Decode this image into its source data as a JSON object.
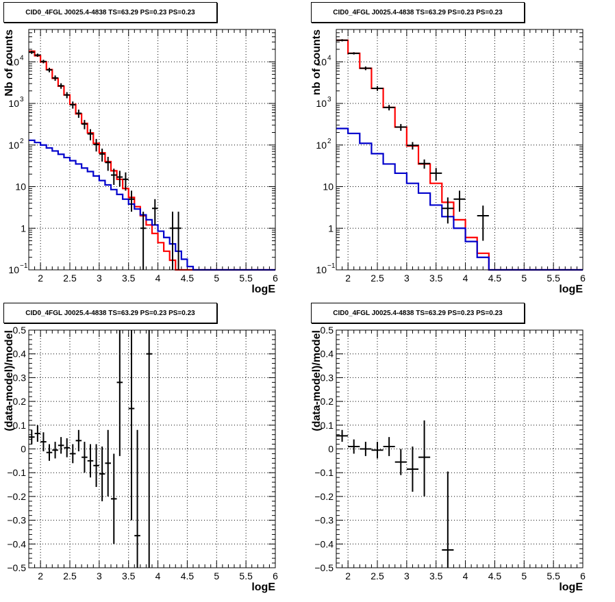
{
  "chart_data": [
    {
      "type": "line",
      "title": "CID0_4FGL J0025.4-4838 TS=63.29 PS=0.23 PS=0.23",
      "xlabel": "logE",
      "ylabel": "Nb of counts",
      "log_y": true,
      "xlim": [
        1.8,
        6.0
      ],
      "ylim": [
        0.1,
        60000
      ],
      "grid": true,
      "x_ticks": [
        "2",
        "2.5",
        "3",
        "3.5",
        "4",
        "4.5",
        "5",
        "5.5",
        "6"
      ],
      "y_ticks": [
        "10^-1",
        "1",
        "10",
        "10^2",
        "10^3",
        "10^4"
      ],
      "bin_edges": [
        1.8,
        1.9,
        2.0,
        2.1,
        2.2,
        2.3,
        2.4,
        2.5,
        2.6,
        2.7,
        2.8,
        2.9,
        3.0,
        3.1,
        3.2,
        3.3,
        3.4,
        3.5,
        3.6,
        3.7,
        3.8,
        3.9,
        4.0,
        4.1,
        4.2,
        4.3,
        4.4,
        4.5,
        4.6,
        4.7,
        4.8,
        4.9,
        5.0,
        5.1,
        5.2,
        5.3,
        5.4,
        5.5,
        5.6,
        5.7,
        5.8,
        5.9,
        6.0
      ],
      "series": [
        {
          "color": "#ff0000",
          "kind": "step",
          "values": [
            18000,
            14000,
            10000,
            6500,
            4000,
            2600,
            1600,
            950,
            560,
            330,
            195,
            110,
            65,
            40,
            24,
            15,
            9,
            5.5,
            3.3,
            2.0,
            1.2,
            0.75,
            0.45,
            0.28,
            0.17,
            0.1,
            0.1,
            0.1,
            0.1,
            0.1,
            0.1,
            0.1,
            0.1,
            0.1,
            0.1,
            0.1,
            0.1,
            0.1,
            0.1,
            0.1,
            0.1,
            0.1
          ]
        },
        {
          "color": "#0000cc",
          "kind": "step",
          "values": [
            130,
            115,
            100,
            85,
            72,
            60,
            50,
            42,
            35,
            28,
            23,
            18,
            14,
            11,
            8.5,
            6.5,
            5.0,
            3.8,
            2.9,
            2.1,
            1.6,
            1.2,
            0.85,
            0.6,
            0.42,
            0.28,
            0.18,
            0.12,
            0.1,
            0.1,
            0.1,
            0.1,
            0.1,
            0.1,
            0.1,
            0.1,
            0.1,
            0.1,
            0.1,
            0.1,
            0.1,
            0.1
          ]
        }
      ],
      "points": [
        {
          "x": 1.85,
          "y": 17000,
          "ylo": 15500,
          "yhi": 18500
        },
        {
          "x": 1.95,
          "y": 14500,
          "ylo": 13200,
          "yhi": 15800
        },
        {
          "x": 2.05,
          "y": 10200,
          "ylo": 9200,
          "yhi": 11200
        },
        {
          "x": 2.15,
          "y": 6400,
          "ylo": 5600,
          "yhi": 7200
        },
        {
          "x": 2.25,
          "y": 4100,
          "ylo": 3500,
          "yhi": 4700
        },
        {
          "x": 2.35,
          "y": 2650,
          "ylo": 2250,
          "yhi": 3050
        },
        {
          "x": 2.45,
          "y": 1600,
          "ylo": 1330,
          "yhi": 1870
        },
        {
          "x": 2.55,
          "y": 930,
          "ylo": 750,
          "yhi": 1110
        },
        {
          "x": 2.65,
          "y": 580,
          "ylo": 450,
          "yhi": 710
        },
        {
          "x": 2.75,
          "y": 320,
          "ylo": 240,
          "yhi": 400
        },
        {
          "x": 2.85,
          "y": 185,
          "ylo": 130,
          "yhi": 240
        },
        {
          "x": 2.95,
          "y": 103,
          "ylo": 70,
          "yhi": 140
        },
        {
          "x": 3.05,
          "y": 61,
          "ylo": 40,
          "yhi": 82
        },
        {
          "x": 3.15,
          "y": 38,
          "ylo": 24,
          "yhi": 52
        },
        {
          "x": 3.25,
          "y": 19,
          "ylo": 11,
          "yhi": 27
        },
        {
          "x": 3.35,
          "y": 17,
          "ylo": 10,
          "yhi": 24
        },
        {
          "x": 3.45,
          "y": 15,
          "ylo": 8,
          "yhi": 22
        },
        {
          "x": 3.55,
          "y": 5,
          "ylo": 2.5,
          "yhi": 8
        },
        {
          "x": 3.75,
          "y": 1,
          "ylo": 0.1,
          "yhi": 2.5
        },
        {
          "x": 3.95,
          "y": 3,
          "ylo": 1.2,
          "yhi": 5
        },
        {
          "x": 4.25,
          "y": 1,
          "ylo": 0.1,
          "yhi": 2.5
        },
        {
          "x": 4.35,
          "y": 1,
          "ylo": 0.1,
          "yhi": 2.5
        }
      ]
    },
    {
      "type": "line",
      "title": "CID0_4FGL J0025.4-4838 TS=63.29 PS=0.23 PS=0.23",
      "xlabel": "logE",
      "ylabel": "nb of counts",
      "log_y": true,
      "xlim": [
        1.8,
        6.0
      ],
      "ylim": [
        0.1,
        60000
      ],
      "grid": true,
      "x_ticks": [
        "2",
        "2.5",
        "3",
        "3.5",
        "4",
        "4.5",
        "5",
        "5.5",
        "6"
      ],
      "y_ticks": [
        "10^-1",
        "1",
        "10",
        "10^2",
        "10^3",
        "10^4"
      ],
      "bin_edges": [
        1.8,
        2.0,
        2.2,
        2.4,
        2.6,
        2.8,
        3.0,
        3.2,
        3.4,
        3.6,
        3.8,
        4.0,
        4.2,
        4.4,
        4.6,
        4.8,
        5.0,
        5.2,
        5.4,
        5.6,
        5.8,
        6.0
      ],
      "series": [
        {
          "color": "#ff0000",
          "kind": "step",
          "values": [
            33000,
            16000,
            7000,
            2300,
            800,
            270,
            95,
            35,
            12,
            4.2,
            1.6,
            0.6,
            0.25,
            0.1,
            0.1,
            0.1,
            0.1,
            0.1,
            0.1,
            0.1,
            0.1
          ]
        },
        {
          "color": "#0000cc",
          "kind": "step",
          "values": [
            250,
            190,
            110,
            62,
            35,
            21,
            12,
            7.0,
            3.6,
            1.9,
            1.0,
            0.48,
            0.2,
            0.1,
            0.1,
            0.1,
            0.1,
            0.1,
            0.1,
            0.1,
            0.1
          ]
        }
      ],
      "points": [
        {
          "x": 1.9,
          "y": 33000,
          "ylo": 31000,
          "yhi": 35000
        },
        {
          "x": 2.1,
          "y": 16000,
          "ylo": 15000,
          "yhi": 17000
        },
        {
          "x": 2.3,
          "y": 7000,
          "ylo": 6300,
          "yhi": 7700
        },
        {
          "x": 2.5,
          "y": 2300,
          "ylo": 2000,
          "yhi": 2600
        },
        {
          "x": 2.7,
          "y": 800,
          "ylo": 680,
          "yhi": 920
        },
        {
          "x": 2.9,
          "y": 270,
          "ylo": 220,
          "yhi": 320
        },
        {
          "x": 3.1,
          "y": 98,
          "ylo": 78,
          "yhi": 118
        },
        {
          "x": 3.3,
          "y": 36,
          "ylo": 27,
          "yhi": 45
        },
        {
          "x": 3.5,
          "y": 21,
          "ylo": 14,
          "yhi": 28
        },
        {
          "x": 3.7,
          "y": 3,
          "ylo": 1.3,
          "yhi": 5.5
        },
        {
          "x": 3.9,
          "y": 5,
          "ylo": 2.5,
          "yhi": 8
        },
        {
          "x": 4.3,
          "y": 2,
          "ylo": 0.5,
          "yhi": 3.5
        }
      ]
    },
    {
      "type": "scatter",
      "title": "CID0_4FGL J0025.4-4838 TS=63.29 PS=0.23 PS=0.23",
      "xlabel": "logE",
      "ylabel": "(data-model)/model",
      "log_y": false,
      "xlim": [
        1.8,
        6.0
      ],
      "ylim": [
        -0.5,
        0.5
      ],
      "grid": true,
      "x_ticks": [
        "2",
        "2.5",
        "3",
        "3.5",
        "4",
        "4.5",
        "5",
        "5.5",
        "6"
      ],
      "y_ticks": [
        "-0.5",
        "-0.4",
        "-0.3",
        "-0.2",
        "-0.1",
        "0",
        "0.1",
        "0.2",
        "0.3",
        "0.4",
        "0.5"
      ],
      "xerr": 0.05,
      "points": [
        {
          "x": 1.85,
          "y": 0.05,
          "ylo": 0.02,
          "yhi": 0.08
        },
        {
          "x": 1.95,
          "y": 0.065,
          "ylo": 0.03,
          "yhi": 0.1
        },
        {
          "x": 2.05,
          "y": 0.03,
          "ylo": -0.01,
          "yhi": 0.07
        },
        {
          "x": 2.15,
          "y": -0.015,
          "ylo": -0.05,
          "yhi": 0.02
        },
        {
          "x": 2.25,
          "y": -0.005,
          "ylo": -0.04,
          "yhi": 0.03
        },
        {
          "x": 2.35,
          "y": 0.015,
          "ylo": -0.02,
          "yhi": 0.05
        },
        {
          "x": 2.45,
          "y": 0.005,
          "ylo": -0.035,
          "yhi": 0.045
        },
        {
          "x": 2.55,
          "y": -0.02,
          "ylo": -0.06,
          "yhi": 0.02
        },
        {
          "x": 2.65,
          "y": 0.035,
          "ylo": -0.01,
          "yhi": 0.08
        },
        {
          "x": 2.75,
          "y": -0.035,
          "ylo": -0.1,
          "yhi": 0.03
        },
        {
          "x": 2.85,
          "y": -0.05,
          "ylo": -0.12,
          "yhi": 0.02
        },
        {
          "x": 2.95,
          "y": -0.07,
          "ylo": -0.16,
          "yhi": 0.02
        },
        {
          "x": 3.05,
          "y": -0.105,
          "ylo": -0.22,
          "yhi": 0.01
        },
        {
          "x": 3.15,
          "y": -0.06,
          "ylo": -0.2,
          "yhi": 0.08
        },
        {
          "x": 3.25,
          "y": -0.21,
          "ylo": -0.4,
          "yhi": -0.02
        },
        {
          "x": 3.35,
          "y": 0.28,
          "ylo": -0.03,
          "yhi": 0.5
        },
        {
          "x": 3.55,
          "y": 0.17,
          "ylo": -0.3,
          "yhi": 0.5
        },
        {
          "x": 3.65,
          "y": -0.365,
          "ylo": -0.5,
          "yhi": 0.08
        },
        {
          "x": 3.85,
          "y": 0.4,
          "ylo": -0.5,
          "yhi": 0.5
        }
      ]
    },
    {
      "type": "scatter",
      "title": "CID0_4FGL J0025.4-4838 TS=63.29 PS=0.23 PS=0.23",
      "xlabel": "logE",
      "ylabel": "(data-model)/model",
      "log_y": false,
      "xlim": [
        1.8,
        6.0
      ],
      "ylim": [
        -0.5,
        0.5
      ],
      "grid": true,
      "x_ticks": [
        "2",
        "2.5",
        "3",
        "3.5",
        "4",
        "4.5",
        "5",
        "5.5",
        "6"
      ],
      "y_ticks": [
        "-0.5",
        "-0.4",
        "-0.3",
        "-0.2",
        "-0.1",
        "0",
        "0.1",
        "0.2",
        "0.3",
        "0.4",
        "0.5"
      ],
      "xerr": 0.1,
      "points": [
        {
          "x": 1.9,
          "y": 0.055,
          "ylo": 0.03,
          "yhi": 0.08
        },
        {
          "x": 2.1,
          "y": 0.01,
          "ylo": -0.02,
          "yhi": 0.04
        },
        {
          "x": 2.3,
          "y": 0.0,
          "ylo": -0.03,
          "yhi": 0.03
        },
        {
          "x": 2.5,
          "y": -0.005,
          "ylo": -0.04,
          "yhi": 0.03
        },
        {
          "x": 2.7,
          "y": 0.01,
          "ylo": -0.03,
          "yhi": 0.05
        },
        {
          "x": 2.9,
          "y": -0.055,
          "ylo": -0.11,
          "yhi": 0.0
        },
        {
          "x": 3.1,
          "y": -0.085,
          "ylo": -0.18,
          "yhi": 0.01
        },
        {
          "x": 3.3,
          "y": -0.035,
          "ylo": -0.2,
          "yhi": 0.12
        },
        {
          "x": 3.7,
          "y": -0.425,
          "ylo": -0.5,
          "yhi": -0.095
        }
      ]
    }
  ]
}
